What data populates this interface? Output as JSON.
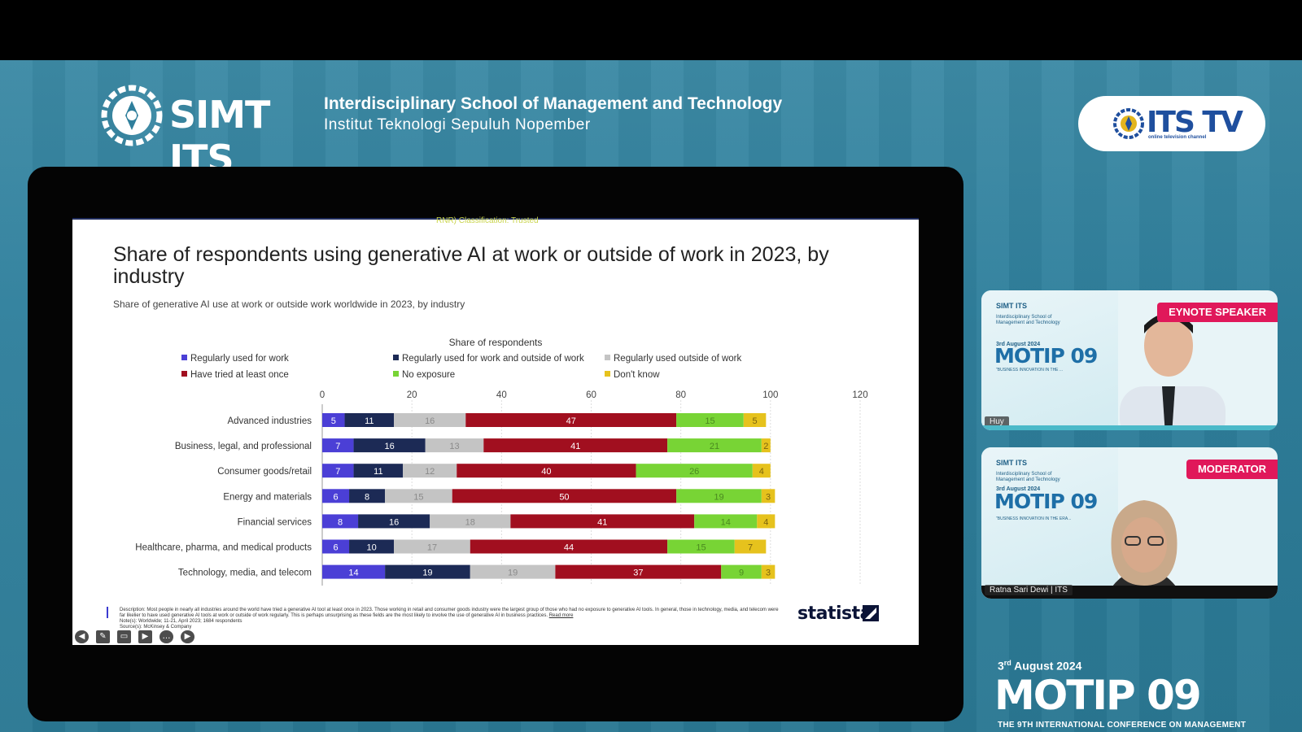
{
  "header": {
    "logo_text": "SIMT ITS",
    "school_title": "Interdisciplinary School of Management and Technology",
    "school_subtitle": "Institut Teknologi Sepuluh Nopember",
    "channel_logo": "ITS TV",
    "channel_tagline": "online television channel"
  },
  "slide": {
    "classification": "RNR) Classification: Trusted",
    "title": "Share of respondents using generative AI at work or outside of work in 2023, by industry",
    "subtitle": "Share of generative AI use at work or outside work worldwide in 2023, by industry",
    "description": "Description: Most people in nearly all industries around the world have tried a generative AI tool at least once in 2023. Those working in retail and consumer goods industry were the largest group of those who had no exposure to generative AI tools. In general, those in technology, media, and telecom were far likelier to have used generative AI tools at work or outside of work regularly. This is perhaps unsurprising as these fields are the most likely to involve the use of generative AI in business practices.",
    "read_more": "Read more",
    "notes": "Note(s): Worldwide; 11-21, April 2023; 1684 respondents",
    "source": "Source(s): McKinsey & Company",
    "brand": "statista",
    "controls": [
      "prev-icon",
      "pen-icon",
      "captions-icon",
      "video-icon",
      "more-icon",
      "next-icon"
    ]
  },
  "chart_data": {
    "type": "bar",
    "orientation": "horizontal",
    "stacked": true,
    "xlabel": "Share of respondents",
    "xlim": [
      0,
      120
    ],
    "xticks": [
      0,
      20,
      40,
      60,
      80,
      100,
      120
    ],
    "legend_position": "top",
    "categories": [
      "Advanced industries",
      "Business, legal, and professional",
      "Consumer goods/retail",
      "Energy and materials",
      "Financial services",
      "Healthcare, pharma, and medical products",
      "Technology, media, and telecom"
    ],
    "series": [
      {
        "name": "Regularly used for work",
        "color": "#4b3fd6",
        "label_color": "#ffffff",
        "values": [
          5,
          7,
          7,
          6,
          8,
          6,
          14
        ]
      },
      {
        "name": "Regularly used for work and outside of work",
        "color": "#1c2a55",
        "label_color": "#ffffff",
        "values": [
          11,
          16,
          11,
          8,
          16,
          10,
          19
        ]
      },
      {
        "name": "Regularly used outside of work",
        "color": "#c4c4c4",
        "label_color": "#8a8a8a",
        "values": [
          16,
          13,
          12,
          15,
          18,
          17,
          19
        ]
      },
      {
        "name": "Have tried at least once",
        "color": "#a10f1f",
        "label_color": "#ffffff",
        "values": [
          47,
          41,
          40,
          50,
          41,
          44,
          37
        ]
      },
      {
        "name": "No exposure",
        "color": "#78d435",
        "label_color": "#4a8a20",
        "values": [
          15,
          21,
          26,
          19,
          14,
          15,
          9
        ]
      },
      {
        "name": "Don't know",
        "color": "#e6c21d",
        "label_color": "#7a6410",
        "values": [
          5,
          2,
          4,
          3,
          4,
          7,
          3
        ]
      }
    ]
  },
  "speakers": [
    {
      "tag": "EYNOTE SPEAKER",
      "name": "Huy",
      "brand": "SIMT ITS",
      "school": "Interdisciplinary School of Management and Technology",
      "date": "3rd August 2024",
      "event": "MOTIP 09",
      "theme": "\"BUSINESS INNOVATION IN THE ..."
    },
    {
      "tag": "MODERATOR",
      "name": "Ratna Sari Dewi | ITS",
      "brand": "SIMT ITS",
      "school": "Interdisciplinary School of Management and Technology",
      "date": "3rd August 2024",
      "event": "MOTIP 09",
      "theme": "\"BUSINESS INNOVATION IN THE ERA..."
    }
  ],
  "event": {
    "day": "3",
    "day_suffix": "rd",
    "month_year": "August 2024",
    "name": "MOTIP 09",
    "conference": "THE 9TH INTERNATIONAL CONFERENCE ON MANAGEMENT"
  }
}
